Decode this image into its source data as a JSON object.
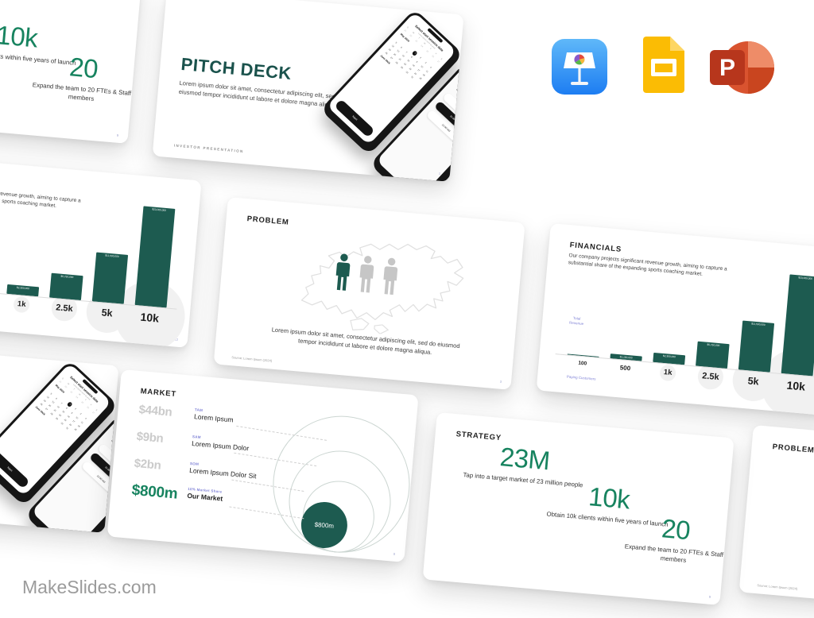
{
  "watermark": "MakeSlides.com",
  "app_icons": [
    {
      "name": "keynote"
    },
    {
      "name": "google-slides"
    },
    {
      "name": "powerpoint"
    }
  ],
  "colors": {
    "teal": "#1d5b50",
    "green": "#17835f",
    "purple": "#8083d6",
    "title_teal": "#1a524c"
  },
  "slides": {
    "title": {
      "heading": "PITCH DECK",
      "body": "Lorem ipsum dolor sit amet, consectetur adipiscing elit, sed do eiusmod tempor incididunt ut labore et dolore magna aliqua",
      "footer": "INVESTOR  PRESENTATION",
      "page_num": "1",
      "phone_date": {
        "header": "Select start session date",
        "subheader": "Lorem ipsum dolor sit amet",
        "month_current": "May 2024",
        "month_next": "June 2024",
        "selected_day": 1,
        "button": "Next"
      },
      "phone_time": {
        "header": "Select start session time",
        "subheader": "Lorem ipsum dolor sit",
        "options": [
          "10:00 AM",
          "11:00 AM",
          "12:00 AM"
        ]
      }
    },
    "problem": {
      "heading": "PROBLEM",
      "body": "Lorem ipsum dolor sit amet, consectetur adipiscing elit, sed do eiusmod tempor incididunt ut labore et dolore magna aliqua.",
      "source": "Source: Lorem Ipsum (2024)",
      "page_num": "3"
    },
    "financials": {
      "heading": "FINANCIALS",
      "body": "Our company projects significant revenue growth, aiming to capture a substantial share of the expanding sports coaching market.",
      "ylabel": "Total Revenue",
      "xlabel": "Paying Customers",
      "page_num": "12"
    },
    "market": {
      "heading": "MARKET",
      "rows": [
        {
          "value": "$44bn",
          "tag": "TAM",
          "name": "Lorem Ipsum"
        },
        {
          "value": "$9bn",
          "tag": "SAM",
          "name": "Lorem Ipsum Dolor"
        },
        {
          "value": "$2bn",
          "tag": "SOM",
          "name": "Lorem Ipsum Dolor Sit"
        },
        {
          "value": "$800m",
          "tag": "10% Market Share",
          "name": "Our Market"
        }
      ],
      "bubble_label": "$800m",
      "page_num": "8"
    },
    "strategy": {
      "heading": "STRATEGY",
      "stats": [
        {
          "value": "23M",
          "desc": "Tap into a target market of 23 million people"
        },
        {
          "value": "10k",
          "desc": "Obtain 10k clients within five years of launch"
        },
        {
          "value": "20",
          "desc": "Expand the team to 20 FTEs & Staff members"
        }
      ],
      "page_num": "9"
    }
  },
  "chart_data": {
    "type": "bar",
    "title": "FINANCIALS",
    "categories": [
      "100",
      "500",
      "1k",
      "2.5k",
      "5k",
      "10k"
    ],
    "values": [
      230000,
      1150000,
      2300000,
      5750000,
      11500000,
      23000000
    ],
    "bar_labels": [
      "",
      "$1,150,000",
      "$2,300,000",
      "$5,750,000",
      "$11,500,000",
      "$23,000,000"
    ],
    "xlabel": "Paying Customers",
    "ylabel": "Total Revenue",
    "ylim": [
      0,
      23000000
    ],
    "bar_color": "#1d5b50",
    "grid": false,
    "legend": "none"
  }
}
